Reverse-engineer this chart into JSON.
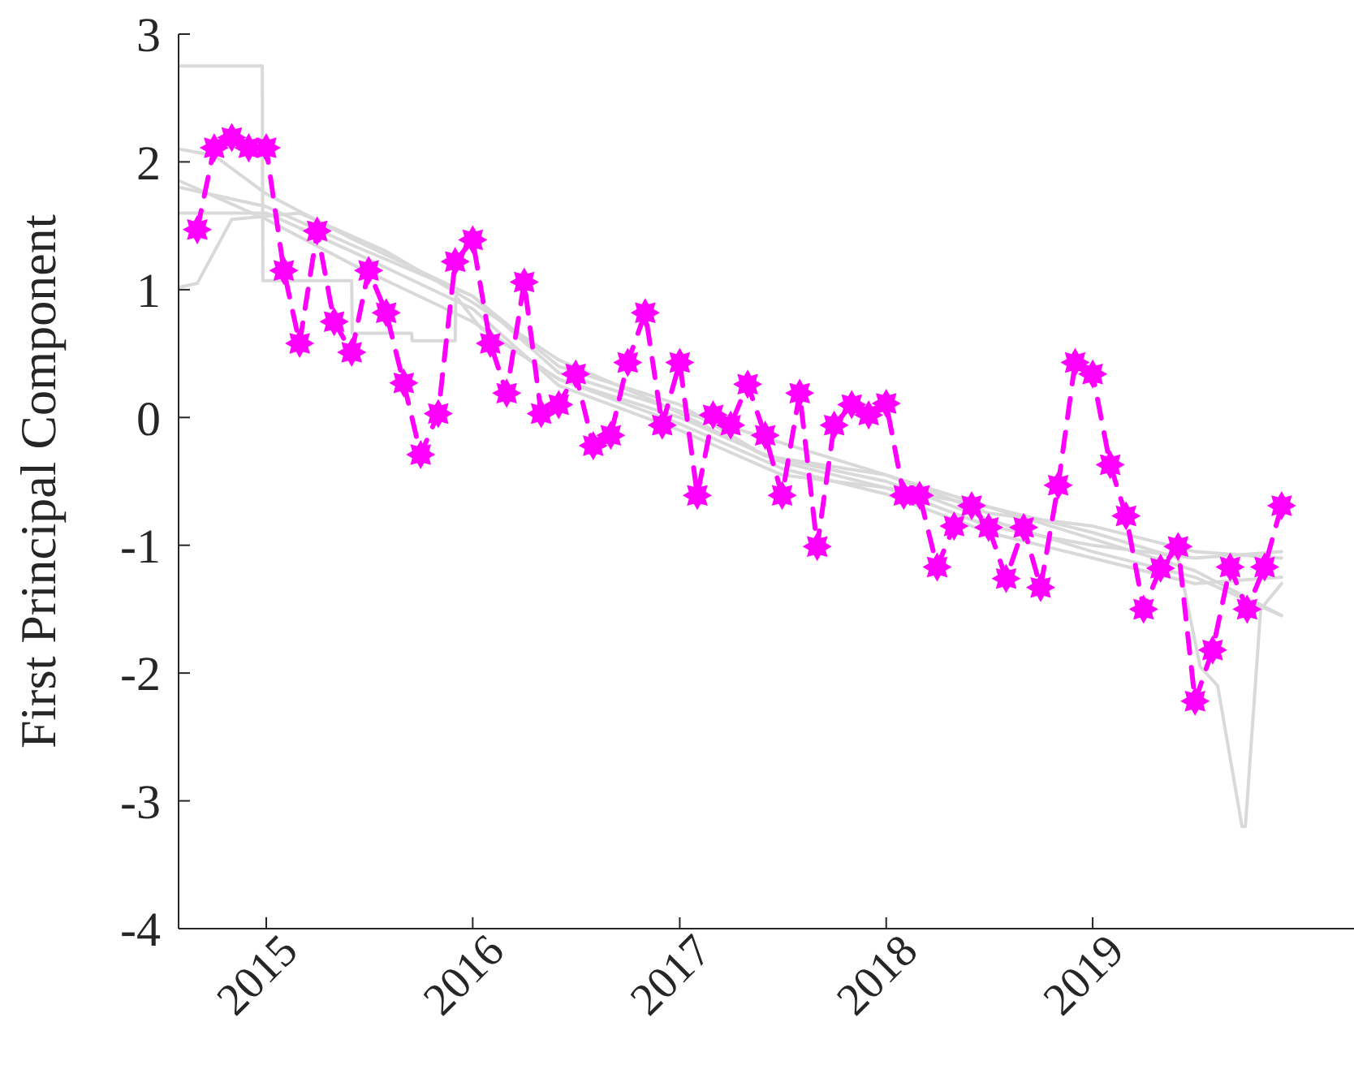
{
  "chart_data": {
    "type": "line",
    "ylabel": "First Principal Component",
    "x": [
      "2014-09",
      "2014-10",
      "2014-11",
      "2014-12",
      "2015-01",
      "2015-02",
      "2015-03",
      "2015-04",
      "2015-05",
      "2015-06",
      "2015-07",
      "2015-08",
      "2015-09",
      "2015-10",
      "2015-11",
      "2015-12",
      "2016-01",
      "2016-02",
      "2016-03",
      "2016-04",
      "2016-05",
      "2016-06",
      "2016-07",
      "2016-08",
      "2016-09",
      "2016-10",
      "2016-11",
      "2016-12",
      "2017-01",
      "2017-02",
      "2017-03",
      "2017-04",
      "2017-05",
      "2017-06",
      "2017-07",
      "2017-08",
      "2017-09",
      "2017-10",
      "2017-11",
      "2017-12",
      "2018-01",
      "2018-02",
      "2018-03",
      "2018-04",
      "2018-05",
      "2018-06",
      "2018-07",
      "2018-08",
      "2018-09",
      "2018-10",
      "2018-11",
      "2018-12",
      "2019-01",
      "2019-02",
      "2019-03",
      "2019-04",
      "2019-05",
      "2019-06",
      "2019-07",
      "2019-08",
      "2019-09",
      "2019-10",
      "2019-11",
      "2019-12"
    ],
    "series": [
      {
        "color": "#d9d9d9",
        "line_style": "solid",
        "marker": "none",
        "x": [
          "2014-08-01",
          "2014-12-25",
          "2014-12-26",
          "2015-06-01",
          "2015-06-02",
          "2015-09-15",
          "2015-09-16",
          "2015-12-01",
          "2015-12-02",
          "2016-01-15",
          "2016-06",
          "2017-01",
          "2017-07",
          "2018-01",
          "2018-07",
          "2019-01",
          "2019-07",
          "2019-12-01"
        ],
        "values": [
          2.75,
          2.75,
          1.07,
          1.07,
          0.66,
          0.66,
          0.6,
          0.6,
          0.95,
          0.7,
          0.3,
          0.0,
          -0.35,
          -0.55,
          -0.85,
          -1.0,
          -1.1,
          -1.05
        ]
      },
      {
        "color": "#d9d9d9",
        "line_style": "solid",
        "marker": "none",
        "x": [
          "2014-08-01",
          "2014-09",
          "2014-11",
          "2015-03",
          "2015-08",
          "2016-01",
          "2016-06",
          "2016-12",
          "2017-06",
          "2018-01",
          "2018-07",
          "2019-01",
          "2019-07",
          "2019-12-01"
        ],
        "values": [
          1.02,
          1.05,
          1.55,
          1.6,
          1.3,
          0.9,
          0.45,
          0.1,
          -0.3,
          -0.5,
          -0.8,
          -1.05,
          -1.25,
          -1.55
        ]
      },
      {
        "color": "#d9d9d9",
        "line_style": "solid",
        "marker": "none",
        "x": [
          "2014-08-01",
          "2015-01",
          "2015-06",
          "2016-01",
          "2016-06",
          "2017-01",
          "2017-06",
          "2018-01",
          "2018-07",
          "2019-01",
          "2019-06",
          "2019-07-10",
          "2019-08-10",
          "2019-09-22",
          "2019-09-28",
          "2019-10-25",
          "2019-12-01"
        ],
        "values": [
          1.8,
          1.65,
          1.35,
          0.95,
          0.4,
          0.1,
          -0.3,
          -0.45,
          -0.7,
          -0.9,
          -1.1,
          -1.95,
          -2.1,
          -3.2,
          -3.2,
          -1.5,
          -1.3
        ]
      },
      {
        "color": "#d9d9d9",
        "line_style": "solid",
        "marker": "none",
        "x": [
          "2014-08-01",
          "2014-10",
          "2015-01",
          "2015-06",
          "2016-01",
          "2016-06",
          "2017-01",
          "2017-07",
          "2018-01",
          "2018-07",
          "2019-01",
          "2019-07",
          "2019-12-01"
        ],
        "values": [
          2.1,
          2.05,
          1.75,
          1.4,
          0.95,
          0.35,
          0.05,
          -0.2,
          -0.45,
          -0.75,
          -0.85,
          -1.05,
          -1.1
        ]
      },
      {
        "color": "#d9d9d9",
        "line_style": "solid",
        "marker": "none",
        "x": [
          "2014-08-01",
          "2015-01",
          "2015-06",
          "2016-01",
          "2016-06",
          "2017-01",
          "2017-07",
          "2018-01",
          "2018-07",
          "2019-01",
          "2019-07",
          "2019-12-01"
        ],
        "values": [
          1.85,
          1.55,
          1.2,
          0.75,
          0.3,
          -0.05,
          -0.4,
          -0.6,
          -0.9,
          -1.1,
          -1.3,
          -1.25
        ]
      },
      {
        "color": "#d9d9d9",
        "line_style": "solid",
        "marker": "none",
        "x": [
          "2014-08-01",
          "2015-01",
          "2015-06",
          "2016-01",
          "2016-06",
          "2017-01",
          "2017-07",
          "2018-01",
          "2018-07",
          "2019-01",
          "2019-07",
          "2019-12-01"
        ],
        "values": [
          1.6,
          1.6,
          1.3,
          0.85,
          0.25,
          -0.1,
          -0.45,
          -0.55,
          -0.7,
          -0.95,
          -1.2,
          -1.55
        ]
      },
      {
        "color": "#ff00ff",
        "line_style": "dashed",
        "marker": "star",
        "values": [
          1.47,
          2.11,
          2.19,
          2.11,
          2.11,
          1.15,
          0.58,
          1.46,
          0.75,
          0.51,
          1.15,
          0.82,
          0.27,
          -0.29,
          0.03,
          1.22,
          1.39,
          0.58,
          0.19,
          1.06,
          0.03,
          0.1,
          0.34,
          -0.22,
          -0.14,
          0.43,
          0.82,
          -0.06,
          0.43,
          -0.61,
          0.02,
          -0.06,
          0.26,
          -0.14,
          -0.61,
          0.19,
          -1.01,
          -0.06,
          0.1,
          0.02,
          0.11,
          -0.61,
          -0.61,
          -1.17,
          -0.85,
          -0.69,
          -0.86,
          -1.26,
          -0.86,
          -1.33,
          -0.53,
          0.43,
          0.34,
          -0.37,
          -0.77,
          -1.5,
          -1.18,
          -1.01,
          -2.22,
          -1.82,
          -1.17,
          -1.5,
          -1.17,
          -0.69
        ]
      }
    ],
    "xlim": [
      "2014-07-30",
      "2020-04-07"
    ],
    "xticks": [
      "2015",
      "2016",
      "2017",
      "2018",
      "2019"
    ],
    "ylim": [
      -4,
      3
    ],
    "yticks": [
      -4,
      -3,
      -2,
      -1,
      0,
      1,
      2,
      3
    ]
  }
}
